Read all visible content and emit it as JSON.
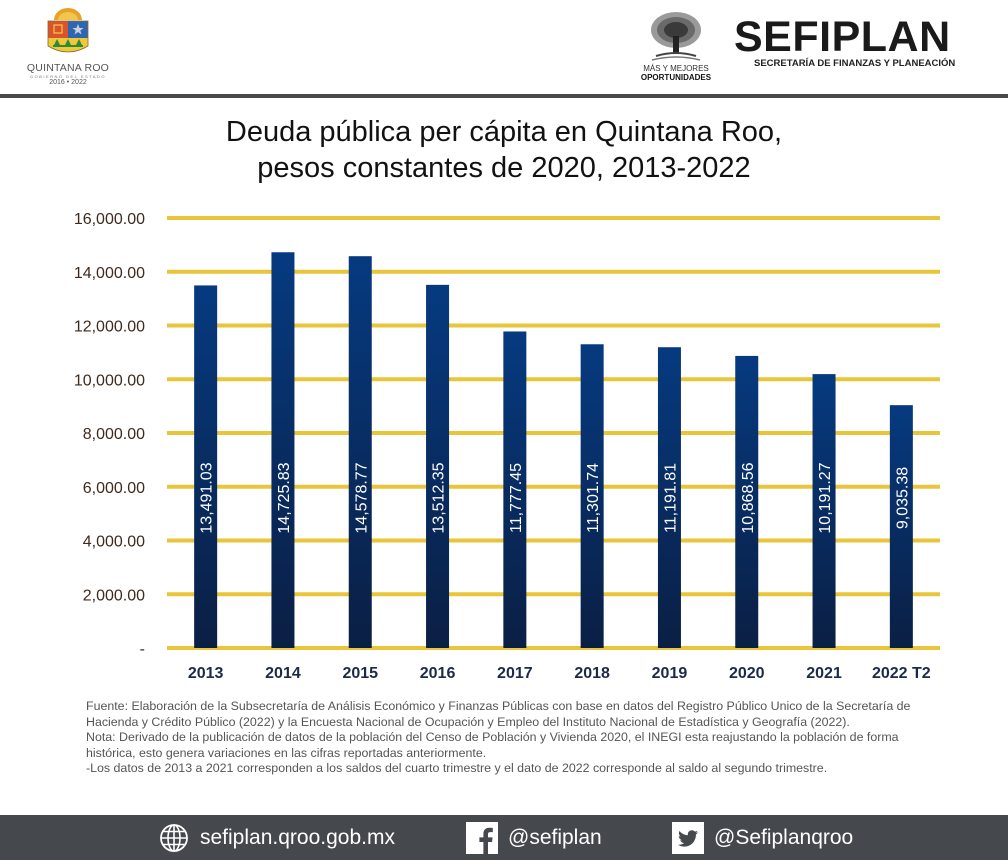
{
  "header": {
    "left_logo": {
      "name": "QUINTANA ROO",
      "subtitle": "GOBIERNO DEL ESTADO",
      "years": "2016 • 2022"
    },
    "center_logo": {
      "line1": "MÁS Y MEJORES",
      "line2": "OPORTUNIDADES"
    },
    "brand": {
      "name": "SEFIPLAN",
      "subtitle": "SECRETARÍA DE FINANZAS Y PLANEACIÓN"
    }
  },
  "colors": {
    "bar_top": "#063a80",
    "bar_bottom": "#0a1f44",
    "grid": "#e9c53a",
    "tick_label": "#3e2a1e",
    "category_label": "#1b2a48",
    "divider": "#45484c"
  },
  "chart_data": {
    "type": "bar",
    "title": "Deuda pública per cápita en Quintana Roo,",
    "subtitle": "pesos constantes de 2020, 2013-2022",
    "xlabel": "",
    "ylabel": "",
    "ylim": [
      0,
      16000
    ],
    "grid": true,
    "legend": "none",
    "y_ticks": [
      0,
      2000,
      4000,
      6000,
      8000,
      10000,
      12000,
      14000,
      16000
    ],
    "y_tick_labels": [
      "-",
      "2,000.00",
      "4,000.00",
      "6,000.00",
      "8,000.00",
      "10,000.00",
      "12,000.00",
      "14,000.00",
      "16,000.00"
    ],
    "categories": [
      "2013",
      "2014",
      "2015",
      "2016",
      "2017",
      "2018",
      "2019",
      "2020",
      "2021",
      "2022 T2"
    ],
    "values": [
      13491.03,
      14725.83,
      14578.77,
      13512.35,
      11777.45,
      11301.74,
      11191.81,
      10868.56,
      10191.27,
      9035.38
    ],
    "data_labels": [
      "13,491.03",
      "14,725.83",
      "14,578.77",
      "13,512.35",
      "11,777.45",
      "11,301.74",
      "11,191.81",
      "10,868.56",
      "10,191.27",
      "9,035.38"
    ]
  },
  "notes": {
    "fuente": "Fuente: Elaboración de la Subsecretaría de Análisis Económico y Finanzas Públicas con base en datos del Registro Público Unico de la Secretaría de Hacienda y Crédito Público (2022) y la Encuesta Nacional de Ocupación y Empleo del Instituto Nacional de Estadística y Geografía (2022).",
    "nota": "Nota: Derivado de la publicación de datos de la población del Censo de Población y Vivienda 2020, el INEGI esta reajustando la población de forma histórica, esto genera variaciones en las cifras reportadas anteriormente.",
    "periodo": "-Los datos de 2013 a 2021 corresponden a los saldos del cuarto trimestre y el dato de 2022 corresponde al saldo al segundo trimestre."
  },
  "footer": {
    "website": {
      "icon": "globe-icon",
      "label": "sefiplan.qroo.gob.mx"
    },
    "facebook": {
      "icon": "facebook-icon",
      "label": "@sefiplan"
    },
    "twitter": {
      "icon": "twitter-icon",
      "label": "@Sefiplanqroo"
    }
  }
}
